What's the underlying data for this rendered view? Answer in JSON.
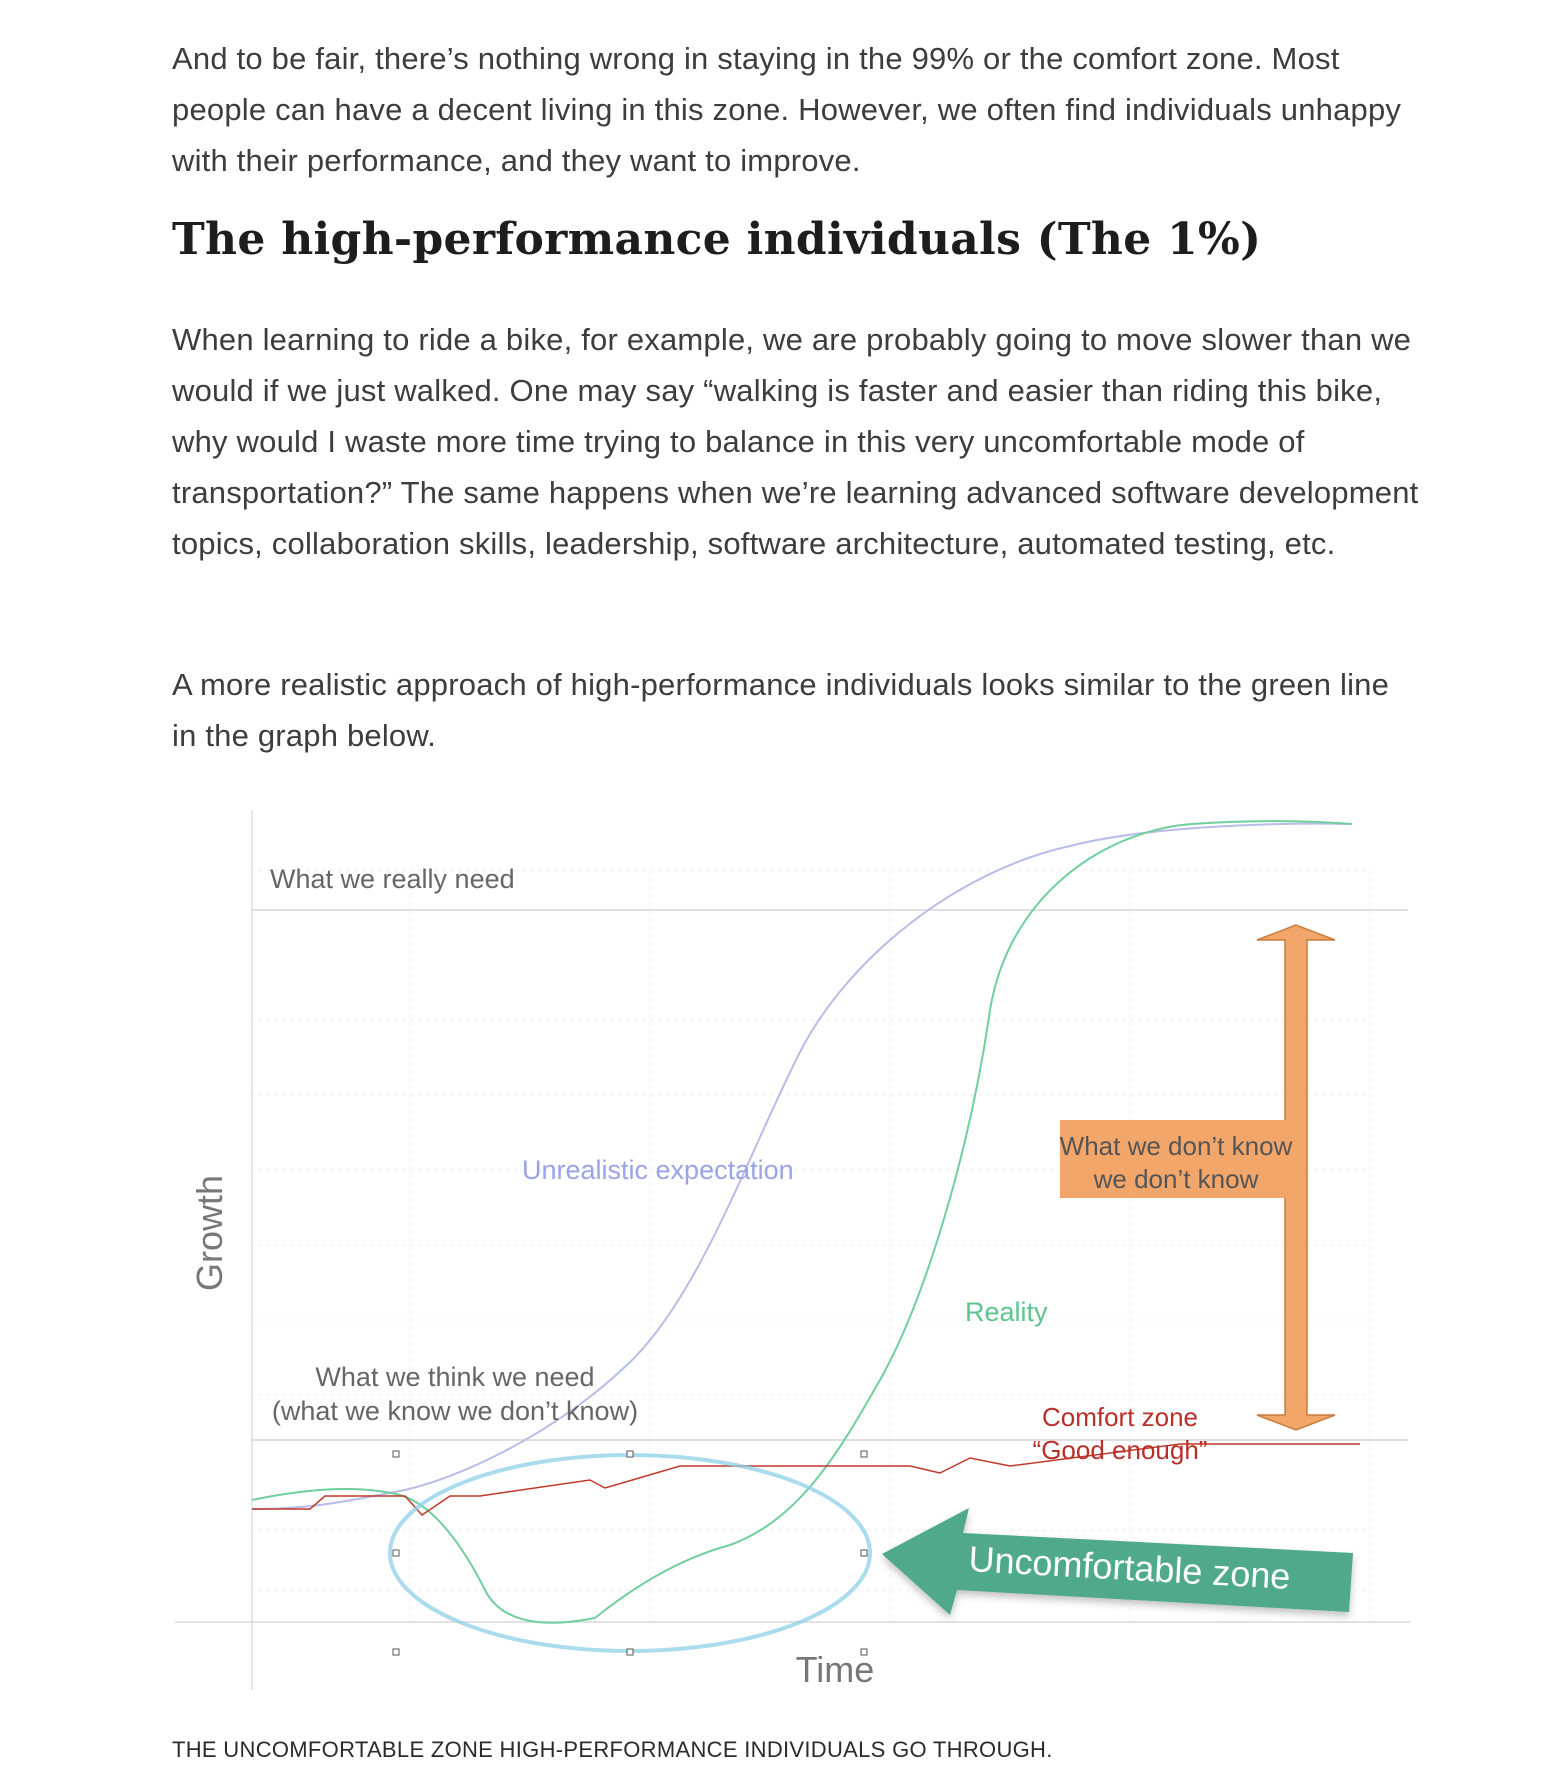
{
  "article": {
    "paragraph_1": "And to be fair, there’s nothing wrong in staying in the 99% or the comfort zone. Most people can have a decent living in this zone. However, we often find individuals unhappy with their performance, and they want to improve.",
    "heading": "The high-performance individuals (The 1%)",
    "paragraph_2": "When learning to ride a bike, for example, we are probably going to move slower than we would if we just walked. One may say “walking is faster and easier than riding this bike, why would I waste more time trying to balance in this very uncomfortable mode of transportation?” The same happens when we’re learning advanced software development topics, collaboration skills, leadership, software architecture, automated testing, etc.",
    "paragraph_3": "A more realistic approach of high-performance individuals looks similar to the green line in the graph below.",
    "caption": "THE UNCOMFORTABLE ZONE HIGH-PERFORMANCE INDIVIDUALS GO THROUGH."
  },
  "diagram": {
    "y_axis_label": "Growth",
    "x_axis_label": "Time",
    "really_need_label": "What we really need",
    "think_need_line1": "What we think we need",
    "think_need_line2": "(what we know we don’t know)",
    "unrealistic_label": "Unrealistic expectation",
    "reality_label": "Reality",
    "comfort_line1": "Comfort zone",
    "comfort_line2": "“Good enough”",
    "dont_know_line1": "What we don’t know",
    "dont_know_line2": "we don’t know",
    "uncomfortable_label": "Uncomfortable zone",
    "colors": {
      "unrealistic": "#b8bde8",
      "reality": "#6fcf9d",
      "comfort": "#c0392b",
      "orange": "#f2a66a",
      "orange_stroke": "#c87d3e",
      "arrow_green": "#4fa98a",
      "ellipse": "#8fd0e8",
      "text_gray": "#666666",
      "unrealistic_text": "#9aa3e6",
      "reality_text": "#5cc48d",
      "comfort_text": "#b7302a"
    }
  }
}
